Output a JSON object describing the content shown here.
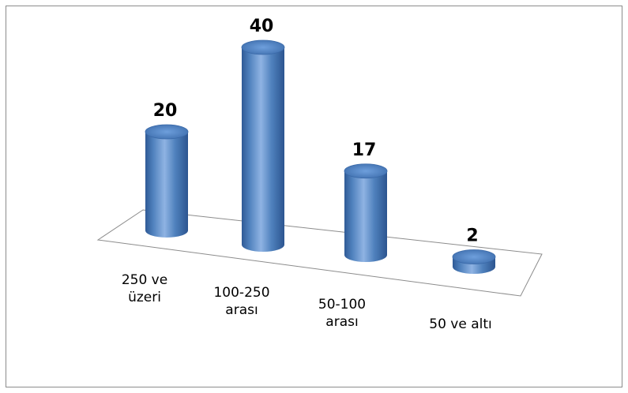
{
  "chart_data": {
    "type": "bar",
    "style": "3d-cylinder",
    "categories": [
      [
        "250 ve",
        "üzeri"
      ],
      [
        "100-250",
        "arası"
      ],
      [
        "50-100",
        "arası"
      ],
      [
        "50 ve altı"
      ]
    ],
    "values": [
      20,
      40,
      17,
      2
    ],
    "data_labels": [
      "20",
      "40",
      "17",
      "2"
    ],
    "title": "",
    "xlabel": "",
    "ylabel": "",
    "legend": "none",
    "grid": false,
    "colors": {
      "bar": "#4f81bd",
      "bar_dark": "#2f5a96",
      "bar_light": "#8fb3e3",
      "top": "#5a8ed0",
      "floor_edge": "#8c8c8c"
    }
  }
}
